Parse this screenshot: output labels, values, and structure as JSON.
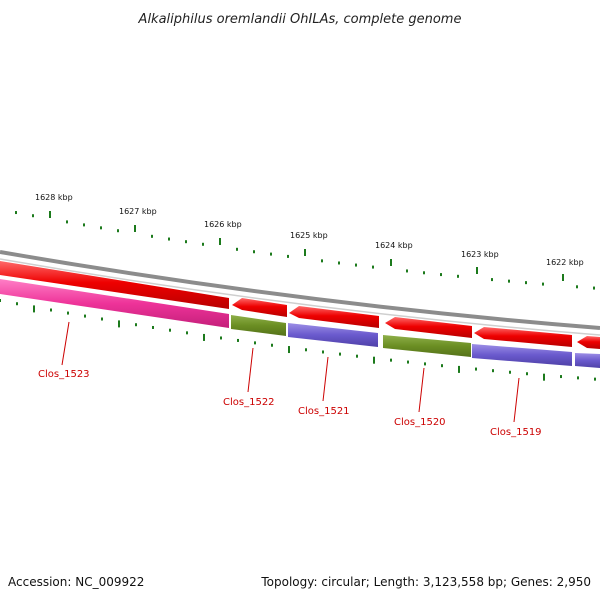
{
  "title": "Alkaliphilus oremlandii OhILAs, complete genome",
  "footer": {
    "accession": "Accession: NC_009922",
    "summary": "Topology: circular; Length: 3,123,558 bp; Genes: 2,950"
  },
  "colors": {
    "backbone": "#8c8c8c",
    "reverse_strand": "#ee0000",
    "tick": "#1c7a1c",
    "gene_label": "#cc0000",
    "pink": "#ee3399",
    "olive": "#6b8e23",
    "purple": "#6a5acd"
  },
  "scale_ticks": [
    {
      "label": "1628 kbp"
    },
    {
      "label": "1627 kbp"
    },
    {
      "label": "1626 kbp"
    },
    {
      "label": "1625 kbp"
    },
    {
      "label": "1624 kbp"
    },
    {
      "label": "1623 kbp"
    },
    {
      "label": "1622 kbp"
    }
  ],
  "genes": [
    {
      "label": "Clos_1523"
    },
    {
      "label": "Clos_1522"
    },
    {
      "label": "Clos_1521"
    },
    {
      "label": "Clos_1520"
    },
    {
      "label": "Clos_1519"
    }
  ]
}
